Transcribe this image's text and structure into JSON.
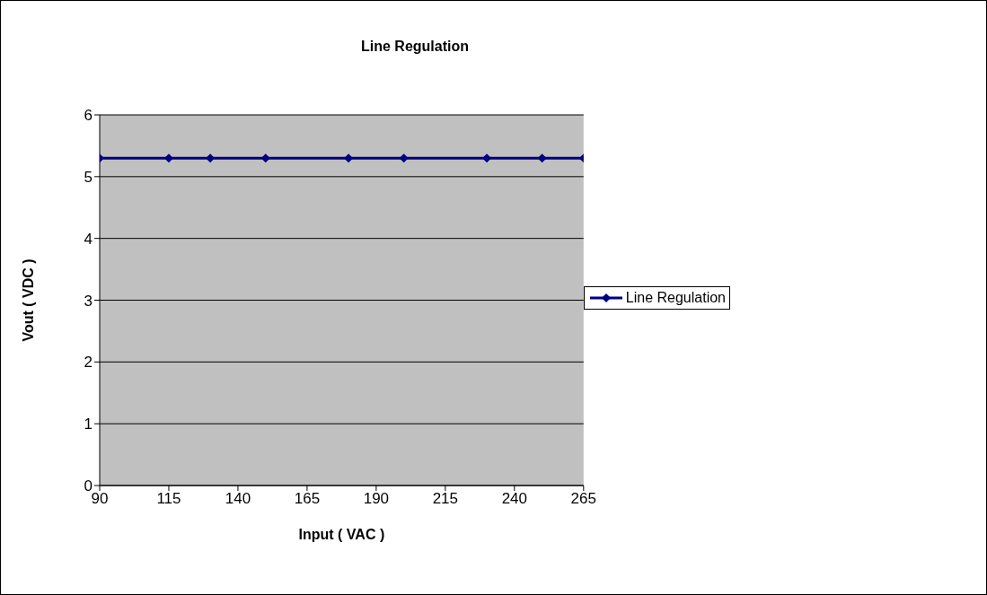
{
  "chart_data": {
    "type": "line",
    "title": "Line Regulation",
    "xlabel": "Input ( VAC )",
    "ylabel": "Vout ( VDC )",
    "x": [
      90,
      115,
      130,
      150,
      180,
      200,
      230,
      250,
      265
    ],
    "series": [
      {
        "name": "Line Regulation",
        "color": "#000080",
        "values": [
          5.3,
          5.3,
          5.3,
          5.3,
          5.3,
          5.3,
          5.3,
          5.3,
          5.3
        ]
      }
    ],
    "xlim": [
      90,
      265
    ],
    "xticks": [
      90,
      115,
      140,
      165,
      190,
      215,
      240,
      265
    ],
    "ylim": [
      0,
      6
    ],
    "yticks": [
      0,
      1,
      2,
      3,
      4,
      5,
      6
    ],
    "grid": "y",
    "legend": "right",
    "marker": "diamond"
  }
}
